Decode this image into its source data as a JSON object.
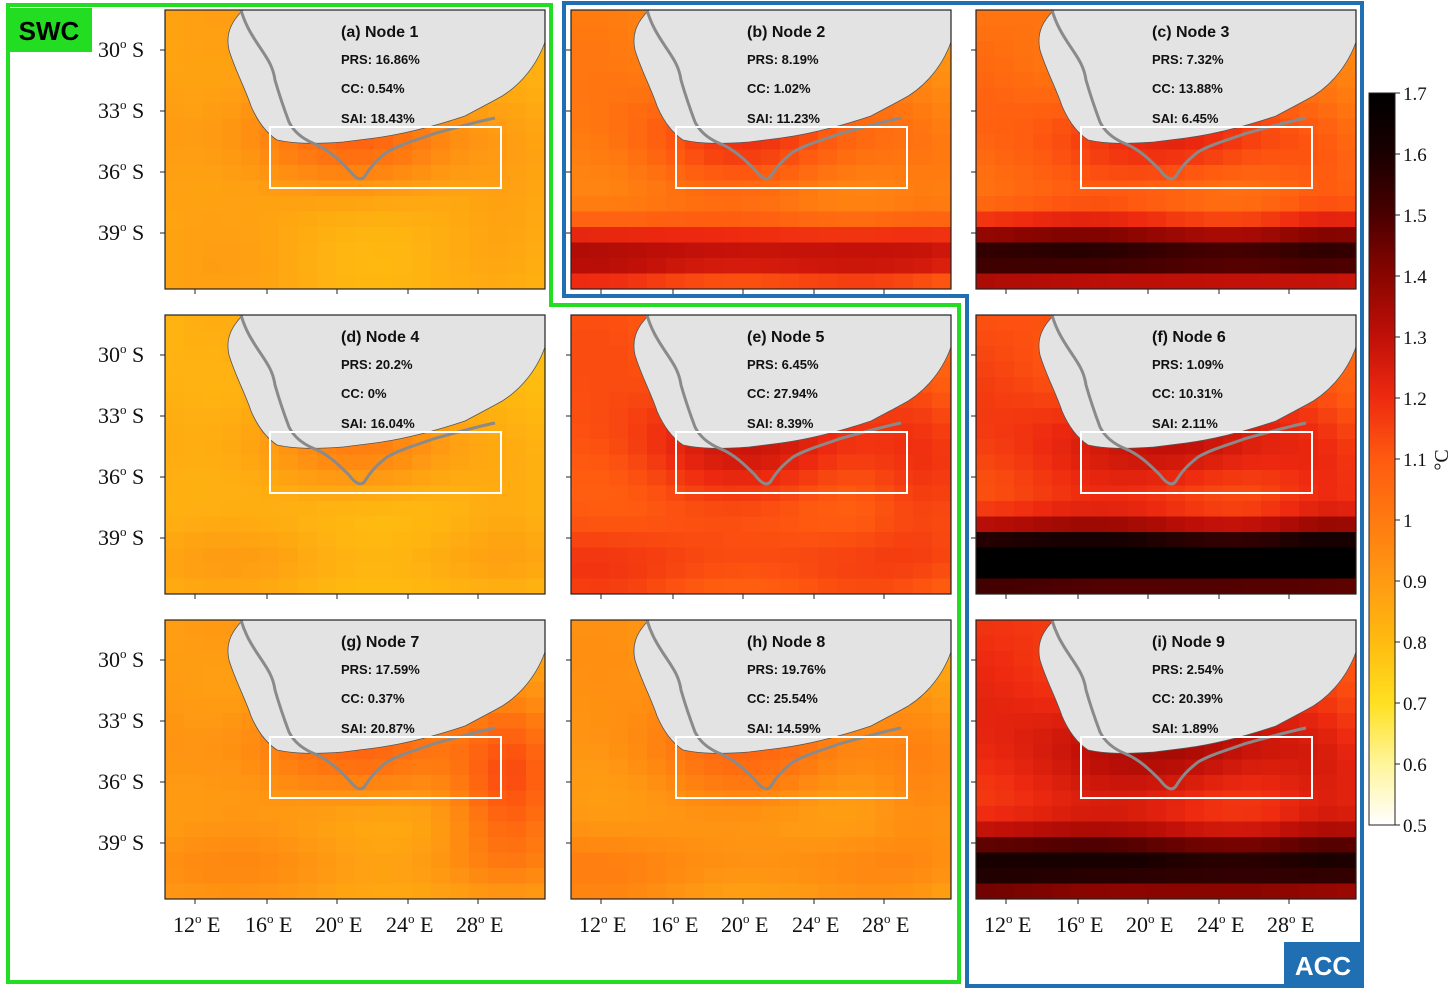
{
  "regions": [
    {
      "label": "SWC",
      "color": "#22dd22",
      "text_color": "#000000"
    },
    {
      "label": "ACC",
      "color": "#1f6fb2",
      "text_color": "#ffffff"
    }
  ],
  "panels": [
    {
      "id": "a",
      "title": "(a) Node 1",
      "prs": "PRS: 16.86%",
      "cc": "CC: 0.54%",
      "sai": "SAI: 18.43%",
      "region": "SWC",
      "field": {
        "base": 0.84,
        "north_gradient": 0.1,
        "coast_anomaly": 0.2,
        "south_band": 0.0,
        "east_anomaly": 0.06
      }
    },
    {
      "id": "b",
      "title": "(b) Node 2",
      "prs": "PRS: 8.19%",
      "cc": "CC: 1.02%",
      "sai": "SAI: 11.23%",
      "region": "ACC",
      "field": {
        "base": 0.95,
        "north_gradient": 0.1,
        "coast_anomaly": 0.22,
        "south_band": 0.35,
        "east_anomaly": 0.05
      }
    },
    {
      "id": "c",
      "title": "(c) Node 3",
      "prs": "PRS: 7.32%",
      "cc": "CC: 13.88%",
      "sai": "SAI: 6.45%",
      "region": "ACC",
      "field": {
        "base": 1.0,
        "north_gradient": 0.1,
        "coast_anomaly": 0.22,
        "south_band": 0.55,
        "east_anomaly": 0.08
      }
    },
    {
      "id": "d",
      "title": "(d) Node 4",
      "prs": "PRS: 20.2%",
      "cc": "CC: 0%",
      "sai": "SAI: 16.04%",
      "region": "SWC",
      "field": {
        "base": 0.8,
        "north_gradient": 0.08,
        "coast_anomaly": 0.16,
        "south_band": 0.05,
        "east_anomaly": 0.06
      }
    },
    {
      "id": "e",
      "title": "(e) Node 5",
      "prs": "PRS: 6.45%",
      "cc": "CC: 27.94%",
      "sai": "SAI: 8.39%",
      "region": "SWC",
      "field": {
        "base": 1.08,
        "north_gradient": 0.08,
        "coast_anomaly": 0.18,
        "south_band": 0.06,
        "east_anomaly": 0.1
      }
    },
    {
      "id": "f",
      "title": "(f) Node 6",
      "prs": "PRS: 1.09%",
      "cc": "CC: 10.31%",
      "sai": "SAI: 2.11%",
      "region": "ACC",
      "field": {
        "base": 1.1,
        "north_gradient": 0.08,
        "coast_anomaly": 0.2,
        "south_band": 0.7,
        "east_anomaly": 0.08
      }
    },
    {
      "id": "g",
      "title": "(g) Node 7",
      "prs": "PRS: 17.59%",
      "cc": "CC: 0.37%",
      "sai": "SAI: 20.87%",
      "region": "SWC",
      "field": {
        "base": 0.86,
        "north_gradient": 0.1,
        "coast_anomaly": 0.18,
        "south_band": 0.05,
        "east_anomaly": 0.28
      }
    },
    {
      "id": "h",
      "title": "(h) Node 8",
      "prs": "PRS: 19.76%",
      "cc": "CC: 25.54%",
      "sai": "SAI: 14.59%",
      "region": "SWC",
      "field": {
        "base": 0.88,
        "north_gradient": 0.1,
        "coast_anomaly": 0.16,
        "south_band": 0.06,
        "east_anomaly": 0.1
      }
    },
    {
      "id": "i",
      "title": "(i) Node 9",
      "prs": "PRS: 2.54%",
      "cc": "CC: 20.39%",
      "sai": "SAI: 1.89%",
      "region": "ACC",
      "field": {
        "base": 1.15,
        "north_gradient": 0.1,
        "coast_anomaly": 0.2,
        "south_band": 0.45,
        "east_anomaly": 0.08
      }
    }
  ],
  "axes": {
    "lat_ticks": [
      {
        "value": "30",
        "deg": "o",
        "hem": " S"
      },
      {
        "value": "33",
        "deg": "o",
        "hem": " S"
      },
      {
        "value": "36",
        "deg": "o",
        "hem": " S"
      },
      {
        "value": "39",
        "deg": "o",
        "hem": " S"
      }
    ],
    "lon_ticks": [
      {
        "value": "12",
        "deg": "o",
        "hem": " E"
      },
      {
        "value": "16",
        "deg": "o",
        "hem": " E"
      },
      {
        "value": "20",
        "deg": "o",
        "hem": " E"
      },
      {
        "value": "24",
        "deg": "o",
        "hem": " E"
      },
      {
        "value": "28",
        "deg": "o",
        "hem": " E"
      }
    ],
    "lat_range": [
      28.5,
      41.5
    ],
    "lon_range": [
      10,
      32
    ]
  },
  "colorbar": {
    "min": 0.5,
    "max": 1.7,
    "tick_values": [
      0.5,
      0.6,
      0.7,
      0.8,
      0.9,
      1.0,
      1.1,
      1.2,
      1.3,
      1.4,
      1.5,
      1.6,
      1.7
    ],
    "tick_labels": [
      "0.5",
      "0.6",
      "0.7",
      "0.8",
      "0.9",
      "1",
      "1.1",
      "1.2",
      "1.3",
      "1.4",
      "1.5",
      "1.6",
      "1.7"
    ],
    "unit": "°C",
    "stops": [
      "#ffffff",
      "#fff59a",
      "#ffe020",
      "#ffbb10",
      "#ff9a12",
      "#ff7a10",
      "#ff5a10",
      "#ee2a10",
      "#c01008",
      "#8a0500",
      "#4a0000",
      "#1a0000",
      "#000000"
    ]
  },
  "colors": {
    "land": "#e3e3e3",
    "coastline": "#8a8a8a",
    "box": "#ffffff"
  }
}
